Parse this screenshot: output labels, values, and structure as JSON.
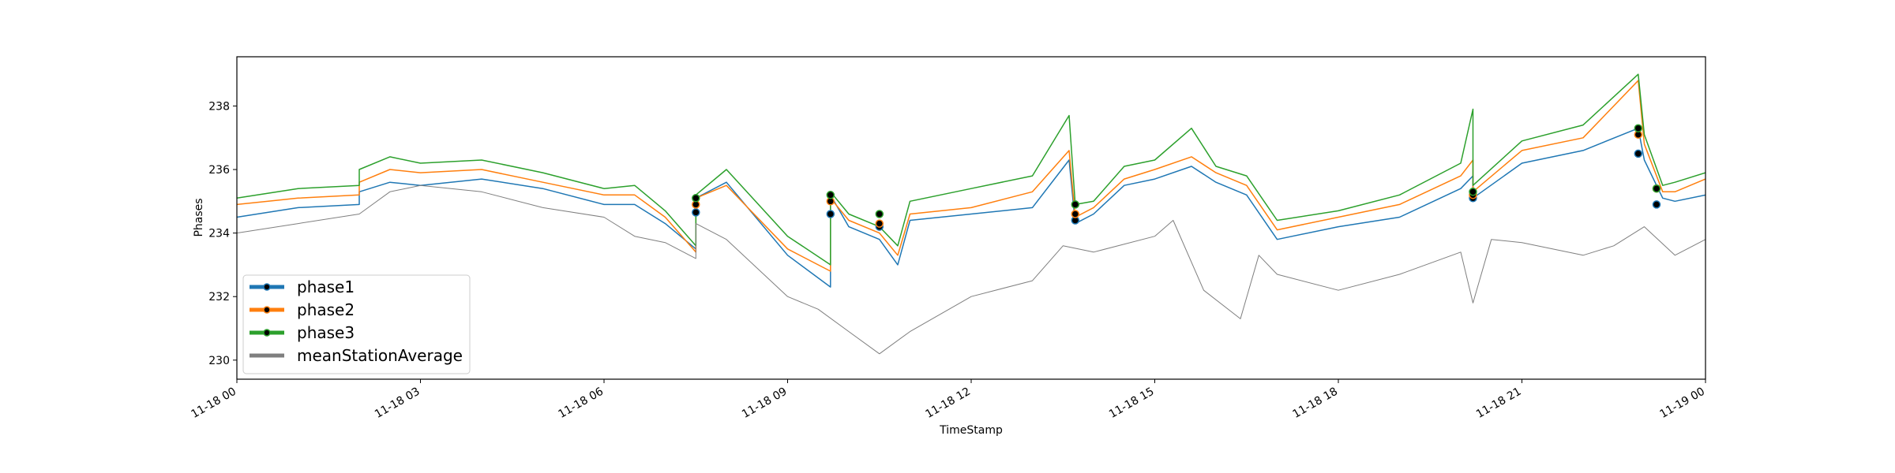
{
  "chart_data": {
    "type": "line",
    "title": "",
    "xlabel": "TimeStamp",
    "ylabel": "Phases",
    "ylim": [
      229.4,
      239.55
    ],
    "xlim": [
      "2023-11-18 00:00",
      "2023-11-19 00:00"
    ],
    "x_unit": "hours",
    "x_ticks": [
      {
        "hour": 0,
        "label": "11-18 00"
      },
      {
        "hour": 3,
        "label": "11-18 03"
      },
      {
        "hour": 6,
        "label": "11-18 06"
      },
      {
        "hour": 9,
        "label": "11-18 09"
      },
      {
        "hour": 12,
        "label": "11-18 12"
      },
      {
        "hour": 15,
        "label": "11-18 15"
      },
      {
        "hour": 18,
        "label": "11-18 18"
      },
      {
        "hour": 21,
        "label": "11-18 21"
      },
      {
        "hour": 24,
        "label": "11-19 00"
      }
    ],
    "y_ticks": [
      {
        "value": 230,
        "label": "230"
      },
      {
        "value": 232,
        "label": "232"
      },
      {
        "value": 234,
        "label": "234"
      },
      {
        "value": 236,
        "label": "236"
      },
      {
        "value": 238,
        "label": "238"
      }
    ],
    "grid": false,
    "legend_position": "lower-left",
    "series": [
      {
        "name": "phase1",
        "color": "#1f77b4",
        "points": [
          [
            0,
            234.5
          ],
          [
            1,
            234.8
          ],
          [
            2,
            234.9
          ],
          [
            2,
            235.3
          ],
          [
            2.5,
            235.6
          ],
          [
            3,
            235.5
          ],
          [
            4,
            235.7
          ],
          [
            5,
            235.4
          ],
          [
            6,
            234.9
          ],
          [
            6.5,
            234.9
          ],
          [
            7,
            234.3
          ],
          [
            7.5,
            233.5
          ],
          [
            7.5,
            235.1
          ],
          [
            8,
            235.6
          ],
          [
            9,
            233.3
          ],
          [
            9.7,
            232.3
          ],
          [
            9.7,
            235.2
          ],
          [
            10,
            234.2
          ],
          [
            10.5,
            233.8
          ],
          [
            10.8,
            233.0
          ],
          [
            11,
            234.4
          ],
          [
            12,
            234.6
          ],
          [
            13,
            234.8
          ],
          [
            13.6,
            236.3
          ],
          [
            13.7,
            234.3
          ],
          [
            14,
            234.6
          ],
          [
            14.5,
            235.5
          ],
          [
            15,
            235.7
          ],
          [
            15.6,
            236.1
          ],
          [
            16,
            235.6
          ],
          [
            16.5,
            235.2
          ],
          [
            17,
            233.8
          ],
          [
            18,
            234.2
          ],
          [
            19,
            234.5
          ],
          [
            20,
            235.4
          ],
          [
            20.2,
            235.8
          ],
          [
            20.2,
            235.1
          ],
          [
            21,
            236.2
          ],
          [
            22,
            236.6
          ],
          [
            22.9,
            237.3
          ],
          [
            23,
            236.3
          ],
          [
            23.3,
            235.1
          ],
          [
            23.5,
            235.0
          ],
          [
            24,
            235.2
          ]
        ]
      },
      {
        "name": "phase2",
        "color": "#ff7f0e",
        "points": [
          [
            0,
            234.9
          ],
          [
            1,
            235.1
          ],
          [
            2,
            235.2
          ],
          [
            2,
            235.6
          ],
          [
            2.5,
            236.0
          ],
          [
            3,
            235.9
          ],
          [
            4,
            236.0
          ],
          [
            5,
            235.6
          ],
          [
            6,
            235.2
          ],
          [
            6.5,
            235.2
          ],
          [
            7,
            234.5
          ],
          [
            7.5,
            233.4
          ],
          [
            7.5,
            235.1
          ],
          [
            8,
            235.5
          ],
          [
            9,
            233.5
          ],
          [
            9.7,
            232.8
          ],
          [
            9.7,
            235.1
          ],
          [
            10,
            234.4
          ],
          [
            10.5,
            234.0
          ],
          [
            10.8,
            233.3
          ],
          [
            11,
            234.6
          ],
          [
            12,
            234.8
          ],
          [
            13,
            235.3
          ],
          [
            13.6,
            236.6
          ],
          [
            13.7,
            234.5
          ],
          [
            14,
            234.8
          ],
          [
            14.5,
            235.7
          ],
          [
            15,
            236.0
          ],
          [
            15.6,
            236.4
          ],
          [
            16,
            235.9
          ],
          [
            16.5,
            235.5
          ],
          [
            17,
            234.1
          ],
          [
            18,
            234.5
          ],
          [
            19,
            234.9
          ],
          [
            20,
            235.8
          ],
          [
            20.2,
            236.3
          ],
          [
            20.2,
            235.3
          ],
          [
            21,
            236.6
          ],
          [
            22,
            237.0
          ],
          [
            22.9,
            238.8
          ],
          [
            23,
            236.8
          ],
          [
            23.3,
            235.3
          ],
          [
            23.5,
            235.3
          ],
          [
            24,
            235.7
          ]
        ]
      },
      {
        "name": "phase3",
        "color": "#2ca02c",
        "points": [
          [
            0,
            235.1
          ],
          [
            1,
            235.4
          ],
          [
            2,
            235.5
          ],
          [
            2,
            236.0
          ],
          [
            2.5,
            236.4
          ],
          [
            3,
            236.2
          ],
          [
            4,
            236.3
          ],
          [
            5,
            235.9
          ],
          [
            6,
            235.4
          ],
          [
            6.5,
            235.5
          ],
          [
            7,
            234.7
          ],
          [
            7.5,
            233.6
          ],
          [
            7.5,
            235.2
          ],
          [
            8,
            236.0
          ],
          [
            9,
            233.9
          ],
          [
            9.7,
            233.0
          ],
          [
            9.7,
            235.3
          ],
          [
            10,
            234.6
          ],
          [
            10.5,
            234.2
          ],
          [
            10.8,
            233.6
          ],
          [
            11,
            235.0
          ],
          [
            12,
            235.4
          ],
          [
            13,
            235.8
          ],
          [
            13.6,
            237.7
          ],
          [
            13.7,
            234.9
          ],
          [
            14,
            235.0
          ],
          [
            14.5,
            236.1
          ],
          [
            15,
            236.3
          ],
          [
            15.6,
            237.3
          ],
          [
            16,
            236.1
          ],
          [
            16.5,
            235.8
          ],
          [
            17,
            234.4
          ],
          [
            18,
            234.7
          ],
          [
            19,
            235.2
          ],
          [
            20,
            236.2
          ],
          [
            20.2,
            237.9
          ],
          [
            20.2,
            235.5
          ],
          [
            21,
            236.9
          ],
          [
            22,
            237.4
          ],
          [
            22.9,
            239.0
          ],
          [
            23,
            237.1
          ],
          [
            23.3,
            235.5
          ],
          [
            23.5,
            235.6
          ],
          [
            24,
            235.9
          ]
        ]
      },
      {
        "name": "meanStationAverage",
        "color": "#7f7f7f",
        "points": [
          [
            0,
            234.0
          ],
          [
            1,
            234.3
          ],
          [
            2,
            234.6
          ],
          [
            2.5,
            235.3
          ],
          [
            3,
            235.5
          ],
          [
            4,
            235.3
          ],
          [
            5,
            234.8
          ],
          [
            6,
            234.5
          ],
          [
            6.5,
            233.9
          ],
          [
            7,
            233.7
          ],
          [
            7.5,
            233.2
          ],
          [
            7.5,
            234.3
          ],
          [
            8,
            233.8
          ],
          [
            9,
            232.0
          ],
          [
            9.5,
            231.6
          ],
          [
            10,
            230.9
          ],
          [
            10.5,
            230.2
          ],
          [
            11,
            230.9
          ],
          [
            12,
            232.0
          ],
          [
            13,
            232.5
          ],
          [
            13.5,
            233.6
          ],
          [
            14,
            233.4
          ],
          [
            15,
            233.9
          ],
          [
            15.3,
            234.4
          ],
          [
            15.8,
            232.2
          ],
          [
            16.4,
            231.3
          ],
          [
            16.7,
            233.3
          ],
          [
            17,
            232.7
          ],
          [
            18,
            232.2
          ],
          [
            19,
            232.7
          ],
          [
            20,
            233.4
          ],
          [
            20.2,
            231.8
          ],
          [
            20.5,
            233.8
          ],
          [
            21,
            233.7
          ],
          [
            22,
            233.3
          ],
          [
            22.5,
            233.6
          ],
          [
            23,
            234.2
          ],
          [
            23.5,
            233.3
          ],
          [
            24,
            233.8
          ]
        ]
      }
    ],
    "markers": [
      {
        "series": "phase1",
        "points": [
          [
            7.5,
            234.65
          ],
          [
            9.7,
            234.6
          ],
          [
            10.5,
            234.2
          ],
          [
            13.7,
            234.4
          ],
          [
            20.2,
            235.1
          ],
          [
            22.9,
            236.5
          ],
          [
            23.2,
            234.9
          ]
        ]
      },
      {
        "series": "phase2",
        "points": [
          [
            7.5,
            234.9
          ],
          [
            9.7,
            235.0
          ],
          [
            10.5,
            234.3
          ],
          [
            13.7,
            234.6
          ],
          [
            20.2,
            235.2
          ],
          [
            22.9,
            237.1
          ],
          [
            23.2,
            235.4
          ]
        ]
      },
      {
        "series": "phase3",
        "points": [
          [
            7.5,
            235.1
          ],
          [
            9.7,
            235.2
          ],
          [
            10.5,
            234.6
          ],
          [
            13.7,
            234.9
          ],
          [
            20.2,
            235.3
          ],
          [
            22.9,
            237.3
          ],
          [
            23.2,
            235.4
          ]
        ]
      }
    ]
  }
}
